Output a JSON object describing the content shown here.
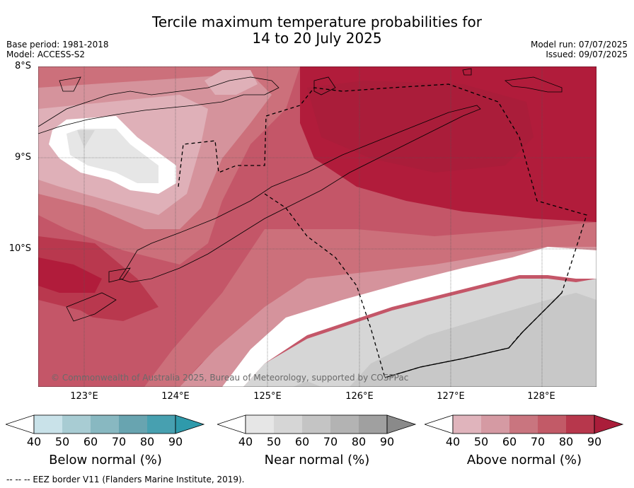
{
  "title": {
    "line1": "Tercile maximum temperature probabilities for",
    "line2": "14 to 20 July 2025"
  },
  "meta": {
    "base_period": "Base period: 1981-2018",
    "model": "Model: ACCESS-S2",
    "model_run": "Model run: 07/07/2025",
    "issued": "Issued: 09/07/2025"
  },
  "axes": {
    "lat_labels": [
      "8°S",
      "9°S",
      "10°S"
    ],
    "lon_labels": [
      "123°E",
      "124°E",
      "125°E",
      "126°E",
      "127°E",
      "128°E"
    ]
  },
  "copyright": "© Commonwealth of Australia 2025, Bureau of Meteorology, supported by COSPPac",
  "colorbars": [
    {
      "title": "Below normal (%)",
      "ticks": [
        "40",
        "50",
        "60",
        "70",
        "80",
        "90"
      ],
      "colors": [
        "#c9e2e9",
        "#a8ccd3",
        "#88b8c1",
        "#68a4b0",
        "#47a0b0",
        "#2f9aab"
      ]
    },
    {
      "title": "Near normal (%)",
      "ticks": [
        "40",
        "50",
        "60",
        "70",
        "80",
        "90"
      ],
      "colors": [
        "#e6e6e6",
        "#d6d6d6",
        "#c4c4c4",
        "#b3b3b3",
        "#a0a0a0",
        "#8a8a8a"
      ]
    },
    {
      "title": "Above normal (%)",
      "ticks": [
        "40",
        "50",
        "60",
        "70",
        "80",
        "90"
      ],
      "colors": [
        "#e0b4bc",
        "#d59aa3",
        "#c9757f",
        "#c25a67",
        "#b7374c",
        "#aa1d3a"
      ]
    }
  ],
  "footer": "--  --  -- EEZ border V11 (Flanders Marine Institute, 2019).",
  "palette": {
    "above": [
      "#dfb0b8",
      "#d5939c",
      "#cc707b",
      "#c45668",
      "#b9384e",
      "#b11c3b"
    ],
    "near": [
      "#e6e6e6",
      "#d6d6d6",
      "#c8c8c8"
    ],
    "white": "#ffffff"
  }
}
